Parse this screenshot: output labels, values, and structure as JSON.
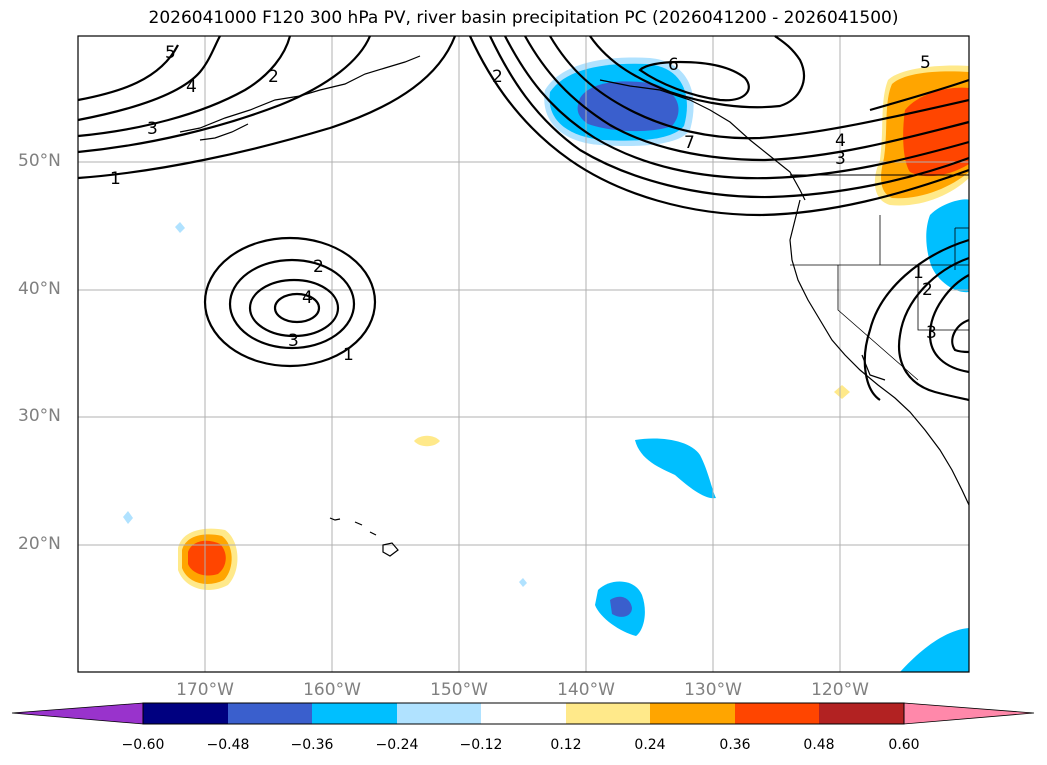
{
  "title": "2026041000 F120 300 hPa PV, river basin precipitation PC (2026041200 - 2026041500)",
  "lat_labels": [
    "50°N",
    "40°N",
    "30°N",
    "20°N"
  ],
  "lon_labels": [
    "170°W",
    "160°W",
    "150°W",
    "140°W",
    "130°W",
    "120°W"
  ],
  "contour_labels": [
    "5",
    "4",
    "3",
    "2",
    "1",
    "2",
    "4",
    "3",
    "1",
    "2",
    "6",
    "7",
    "4",
    "3",
    "5",
    "1",
    "2",
    "3"
  ],
  "colorbar": {
    "ticks": [
      "−0.60",
      "−0.48",
      "−0.36",
      "−0.24",
      "−0.12",
      "0.12",
      "0.24",
      "0.36",
      "0.48",
      "0.60"
    ],
    "colors": [
      "#9933cc",
      "#000080",
      "#3a5fcd",
      "#00bfff",
      "#b0e2ff",
      "#ffffff",
      "#ffe98a",
      "#ffa500",
      "#ff4500",
      "#b22222",
      "#ff88aa"
    ]
  }
}
